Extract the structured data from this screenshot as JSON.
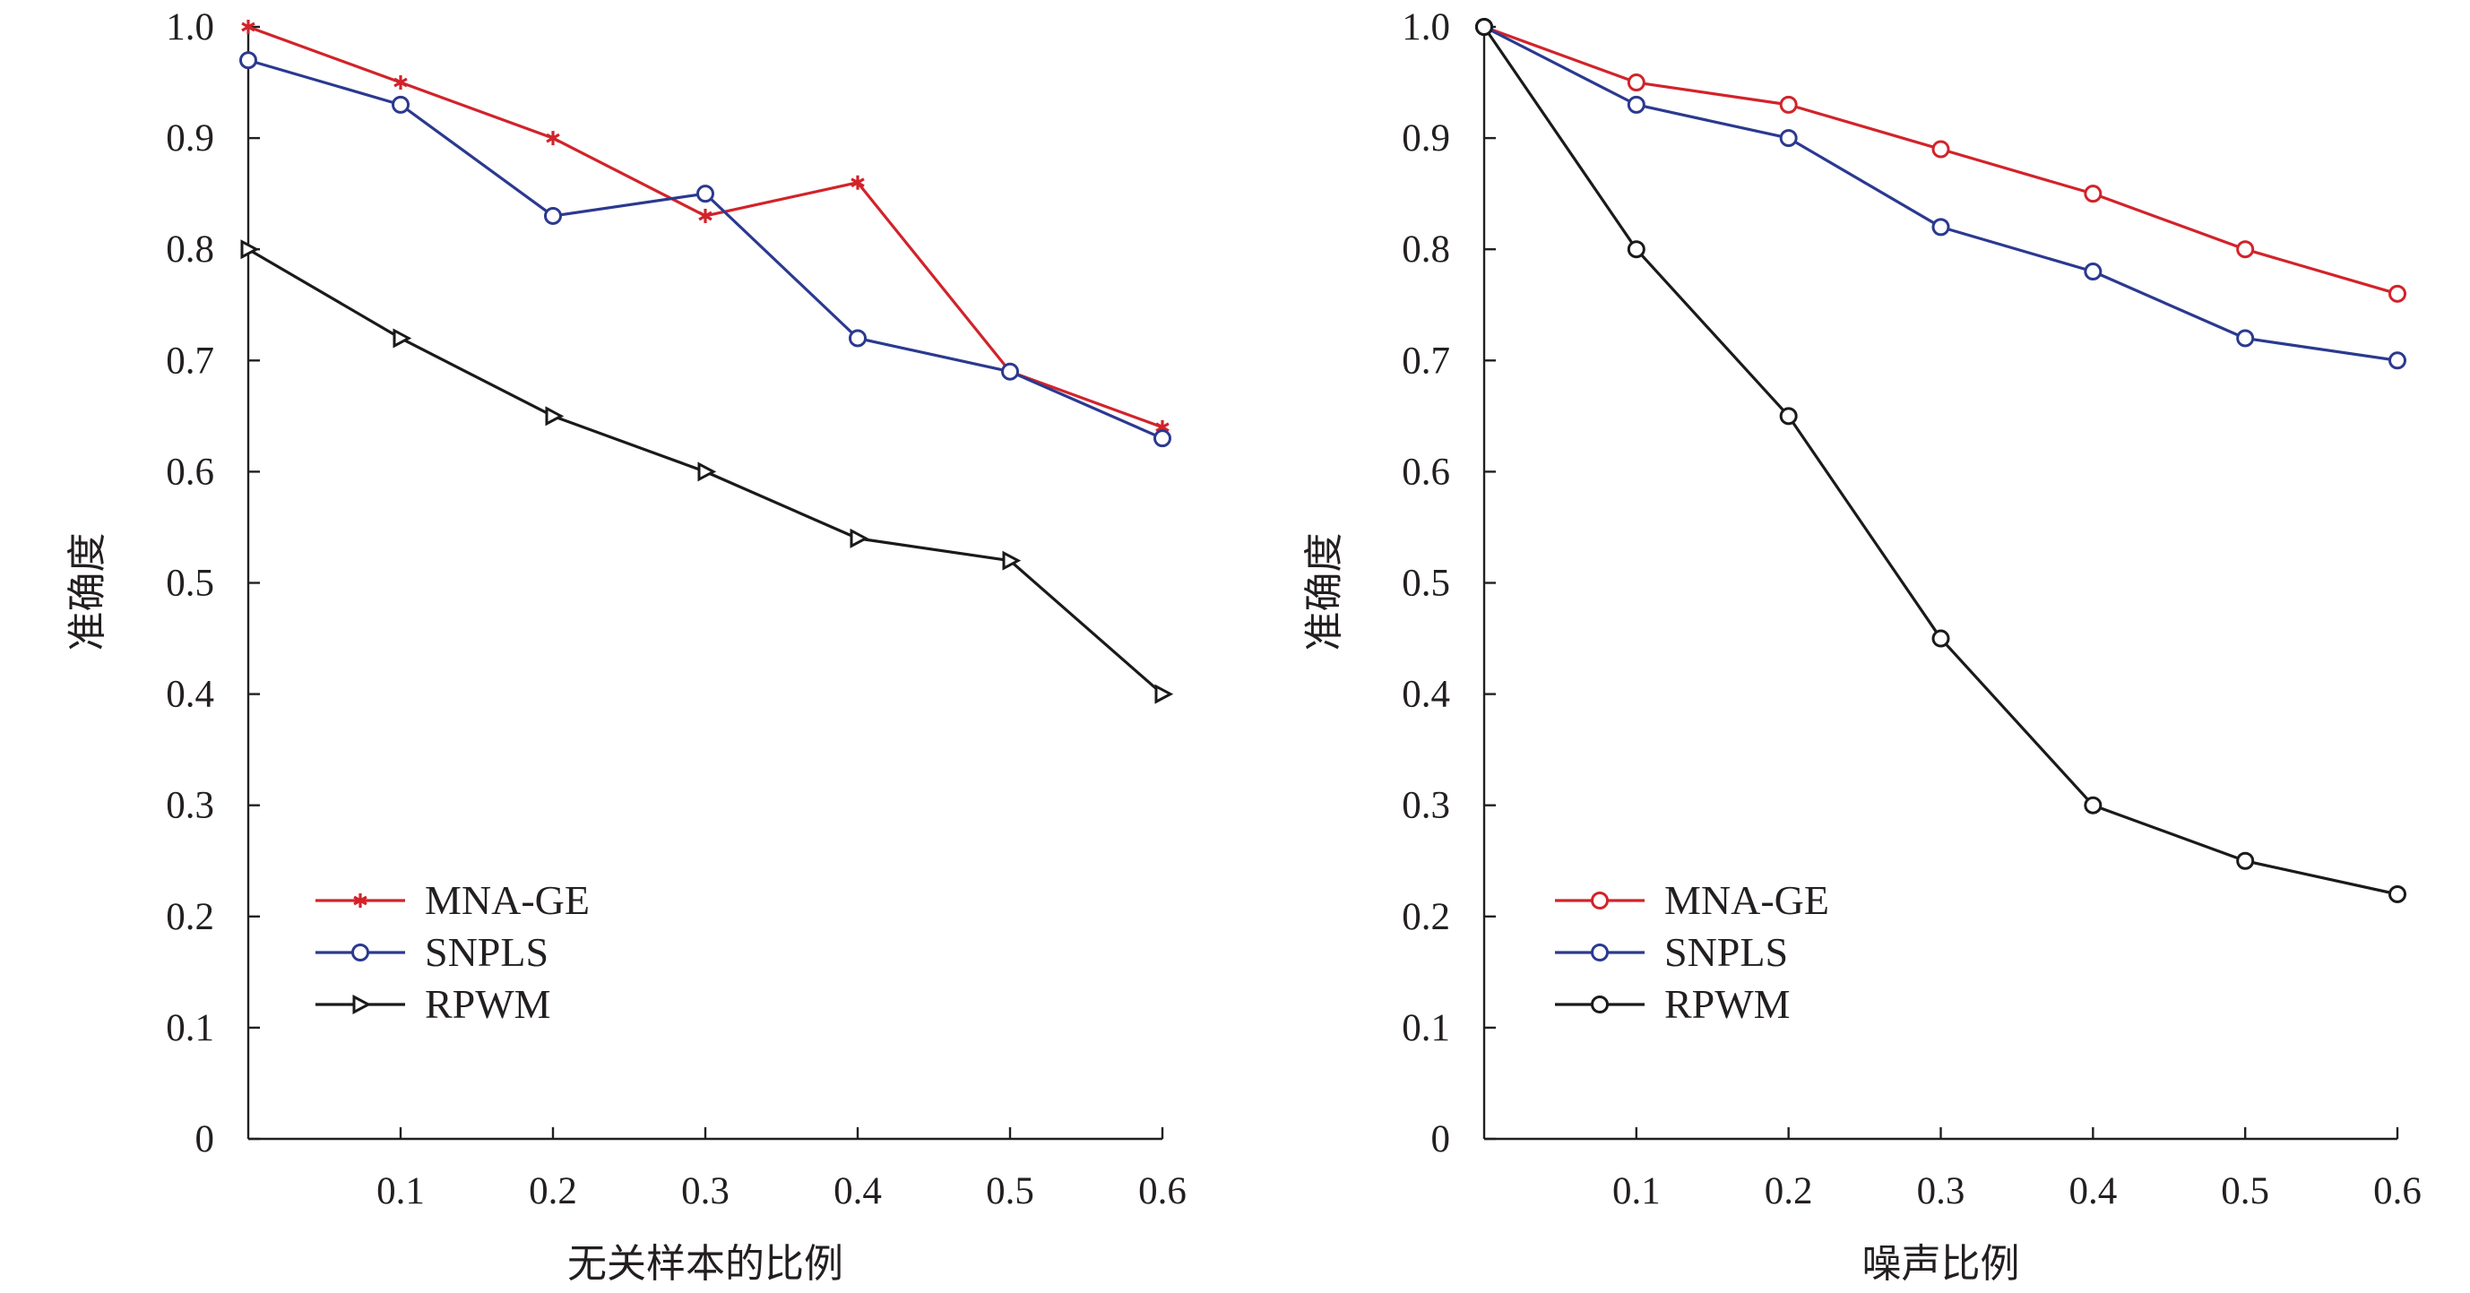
{
  "chart_data": [
    {
      "type": "line",
      "xlabel": "无关样本的比例",
      "ylabel": "准确度",
      "x": [
        0.0,
        0.1,
        0.2,
        0.3,
        0.4,
        0.5,
        0.6
      ],
      "xticks": [
        "0.1",
        "0.2",
        "0.3",
        "0.4",
        "0.5",
        "0.6"
      ],
      "yticks": [
        "0",
        "0.1",
        "0.2",
        "0.3",
        "0.4",
        "0.5",
        "0.6",
        "0.7",
        "0.8",
        "0.9",
        "1.0"
      ],
      "xlim": [
        0,
        0.6
      ],
      "ylim": [
        0,
        1.0
      ],
      "grid": false,
      "legend_position": "bottom-left",
      "series": [
        {
          "name": "MNA-GE",
          "color": "#d2232a",
          "marker": "asterisk",
          "values": [
            1.0,
            0.95,
            0.9,
            0.83,
            0.86,
            0.69,
            0.64
          ]
        },
        {
          "name": "SNPLS",
          "color": "#2b3990",
          "marker": "circle",
          "values": [
            0.97,
            0.93,
            0.83,
            0.85,
            0.72,
            0.69,
            0.63
          ]
        },
        {
          "name": "RPWM",
          "color": "#1a1a1a",
          "marker": "triangle-right",
          "values": [
            0.8,
            0.72,
            0.65,
            0.6,
            0.54,
            0.52,
            0.4
          ]
        }
      ]
    },
    {
      "type": "line",
      "xlabel": "噪声比例",
      "ylabel": "准确度",
      "x": [
        0.0,
        0.1,
        0.2,
        0.3,
        0.4,
        0.5,
        0.6
      ],
      "xticks": [
        "0.1",
        "0.2",
        "0.3",
        "0.4",
        "0.5",
        "0.6"
      ],
      "yticks": [
        "0",
        "0.1",
        "0.2",
        "0.3",
        "0.4",
        "0.5",
        "0.6",
        "0.7",
        "0.8",
        "0.9",
        "1.0"
      ],
      "xlim": [
        0,
        0.6
      ],
      "ylim": [
        0,
        1.0
      ],
      "grid": false,
      "legend_position": "bottom-left",
      "series": [
        {
          "name": "MNA-GE",
          "color": "#d2232a",
          "marker": "circle",
          "values": [
            1.0,
            0.95,
            0.93,
            0.89,
            0.85,
            0.8,
            0.76
          ]
        },
        {
          "name": "SNPLS",
          "color": "#2b3990",
          "marker": "circle",
          "values": [
            1.0,
            0.93,
            0.9,
            0.82,
            0.78,
            0.72,
            0.7
          ]
        },
        {
          "name": "RPWM",
          "color": "#1a1a1a",
          "marker": "circle",
          "values": [
            1.0,
            0.8,
            0.65,
            0.45,
            0.3,
            0.25,
            0.22
          ]
        }
      ]
    }
  ]
}
